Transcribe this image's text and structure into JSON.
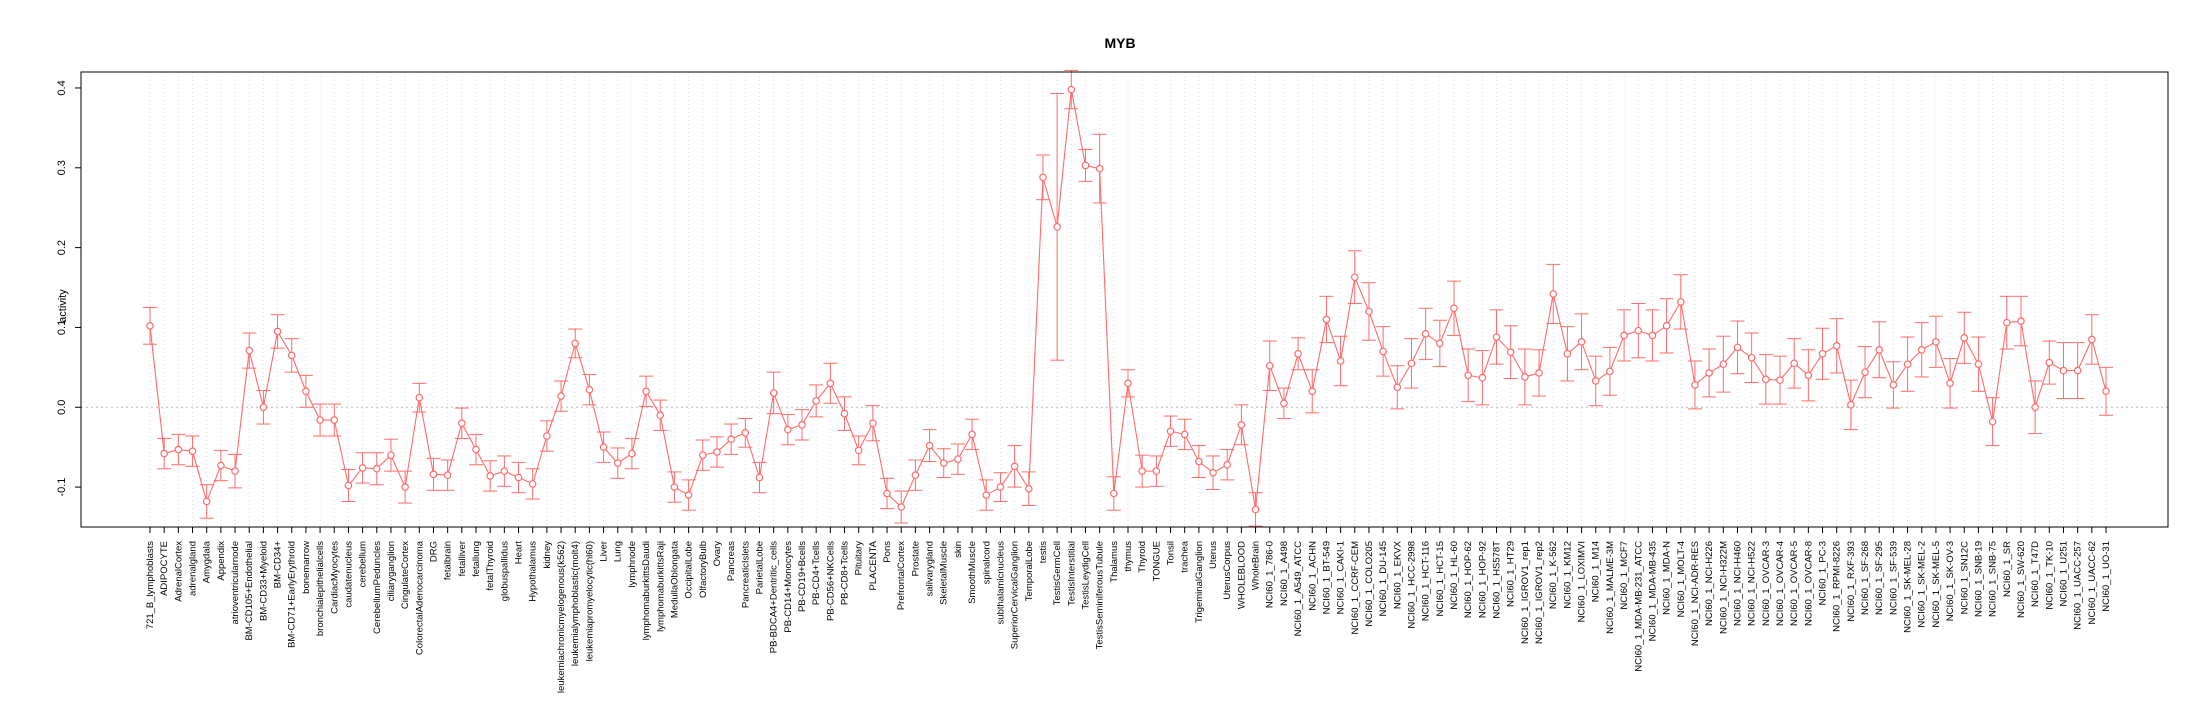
{
  "chart_data": {
    "type": "line",
    "title": "MYB",
    "xlabel": "",
    "ylabel": "activity",
    "ylim": [
      -0.15,
      0.42
    ],
    "yticks": [
      -0.1,
      0.0,
      0.1,
      0.2,
      0.3,
      0.4
    ],
    "ytick_labels": [
      "-0.1",
      "0.0",
      "0.1",
      "0.2",
      "0.3",
      "0.4"
    ],
    "reference_line": 0,
    "grid": "vertical dotted",
    "series_color": "#ff6b6b",
    "categories": [
      "721_B_lymphoblasts",
      "ADIPOCYTE",
      "AdrenalCortex",
      "adrenalgland",
      "Amygdala",
      "Appendix",
      "atrioventricularnode",
      "BM-CD105+Endothelial",
      "BM-CD33+Myeloid",
      "BM-CD34+",
      "BM-CD71+EarlyErythroid",
      "bonemarrow",
      "bronchialepithelialcells",
      "CardiacMyocytes",
      "caudatenucleus",
      "cerebellum",
      "CerebellumPeduncles",
      "ciliaryganglion",
      "CingulateCortex",
      "ColorectalAdenocarcinoma",
      "DRG",
      "fetalbrain",
      "fetalliver",
      "fetallung",
      "fetalThyroid",
      "globuspallidus",
      "Heart",
      "Hypothalamus",
      "kidney",
      "leukemiachronicmyelogenous(k562)",
      "leukemialymphoblastic(molt4)",
      "leukemiapromyelocytic(hl60)",
      "Liver",
      "Lung",
      "lymphnode",
      "lymphomaburkittsDaudi",
      "lymphomaburkittsRaji",
      "MedullaOblongata",
      "OccipitalLobe",
      "OlfactoryBulb",
      "Ovary",
      "Pancreas",
      "PancreaticIslets",
      "ParietalLobe",
      "PB-BDCA4+Dentritic_cells",
      "PB-CD14+Monocytes",
      "PB-CD19+Bcells",
      "PB-CD4+Tcells",
      "PB-CD56+NKCells",
      "PB-CD8+Tcells",
      "Pituitary",
      "PLACENTA",
      "Pons",
      "PrefrontalCortex",
      "Prostate",
      "salivarygland",
      "SkeletalMuscle",
      "skin",
      "SmoothMuscle",
      "spinalcord",
      "subthalamicnucleus",
      "SuperiorCervicalGanglion",
      "TemporalLobe",
      "testis",
      "TestisGermCell",
      "TestisInterstitial",
      "TestisLeydigCell",
      "TestisSeminiferousTubule",
      "Thalamus",
      "thymus",
      "Thyroid",
      "TONGUE",
      "Tonsil",
      "trachea",
      "TrigeminalGanglion",
      "Uterus",
      "UterusCorpus",
      "WHOLEBLOOD",
      "WholeBrain",
      "NCI60_1_786-0",
      "NCI60_1_A498",
      "NCI60_1_A549_ATCC",
      "NCI60_1_ACHN",
      "NCI60_1_BT-549",
      "NCI60_1_CAKI-1",
      "NCI60_1_CCRF-CEM",
      "NCI60_1_COLO205",
      "NCI60_1_DU-145",
      "NCI60_1_EKVX",
      "NCI60_1_HCC-2998",
      "NCI60_1_HCT-116",
      "NCI60_1_HCT-15",
      "NCI60_1_HL-60",
      "NCI60_1_HOP-62",
      "NCI60_1_HOP-92",
      "NCI60_1_HS578T",
      "NCI60_1_HT29",
      "NCI60_1_IGROV1_rep1",
      "NCI60_1_IGROV1_rep2",
      "NCI60_1_K-562",
      "NCI60_1_KM12",
      "NCI60_1_LOXIMVI",
      "NCI60_1_M14",
      "NCI60_1_MALME-3M",
      "NCI60_1_MCF7",
      "NCI60_1_MDA-MB-231_ATCC",
      "NCI60_1_MDA-MB-435",
      "NCI60_1_MDA-N",
      "NCI60_1_MOLT-4",
      "NCI60_1_NCI-ADR-RES",
      "NCI60_1_NCI-H226",
      "NCI60_1_NCI-H322M",
      "NCI60_1_NCI-H460",
      "NCI60_1_NCI-H522",
      "NCI60_1_OVCAR-3",
      "NCI60_1_OVCAR-4",
      "NCI60_1_OVCAR-5",
      "NCI60_1_OVCAR-8",
      "NCI60_1_PC-3",
      "NCI60_1_RPMI-8226",
      "NCI60_1_RXF-393",
      "NCI60_1_SF-268",
      "NCI60_1_SF-295",
      "NCI60_1_SF-539",
      "NCI60_1_SK-MEL-28",
      "NCI60_1_SK-MEL-2",
      "NCI60_1_SK-MEL-5",
      "NCI60_1_SK-OV-3",
      "NCI60_1_SN12C",
      "NCI60_1_SNB-19",
      "NCI60_1_SNB-75",
      "NCI60_1_SR",
      "NCI60_1_SW-620",
      "NCI60_1_T47D",
      "NCI60_1_TK-10",
      "NCI60_1_U251",
      "NCI60_1_UACC-257",
      "NCI60_1_UACC-62",
      "NCI60_1_UO-31"
    ],
    "values": [
      0.102,
      -0.058,
      -0.053,
      -0.055,
      -0.118,
      -0.073,
      -0.08,
      0.071,
      0.0,
      0.095,
      0.065,
      0.02,
      -0.016,
      -0.016,
      -0.098,
      -0.076,
      -0.077,
      -0.06,
      -0.1,
      0.012,
      -0.084,
      -0.085,
      -0.02,
      -0.053,
      -0.086,
      -0.08,
      -0.088,
      -0.096,
      -0.036,
      0.014,
      0.08,
      0.022,
      -0.05,
      -0.07,
      -0.058,
      0.02,
      -0.01,
      -0.1,
      -0.11,
      -0.06,
      -0.056,
      -0.04,
      -0.032,
      -0.088,
      0.018,
      -0.028,
      -0.022,
      0.008,
      0.03,
      -0.008,
      -0.054,
      -0.02,
      -0.108,
      -0.125,
      -0.085,
      -0.048,
      -0.07,
      -0.065,
      -0.034,
      -0.11,
      -0.1,
      -0.074,
      -0.102,
      0.288,
      0.226,
      0.398,
      0.303,
      0.299,
      -0.108,
      0.03,
      -0.08,
      -0.08,
      -0.03,
      -0.034,
      -0.068,
      -0.082,
      -0.072,
      -0.022,
      -0.128,
      0.052,
      0.005,
      0.067,
      0.02,
      0.11,
      0.058,
      0.163,
      0.12,
      0.07,
      0.025,
      0.055,
      0.092,
      0.08,
      0.124,
      0.04,
      0.037,
      0.088,
      0.069,
      0.038,
      0.043,
      0.142,
      0.067,
      0.082,
      0.033,
      0.045,
      0.09,
      0.096,
      0.09,
      0.102,
      0.132,
      0.028,
      0.043,
      0.054,
      0.075,
      0.062,
      0.035,
      0.034,
      0.055,
      0.04,
      0.067,
      0.077,
      0.003,
      0.044,
      0.072,
      0.028,
      0.054,
      0.072,
      0.082,
      0.03,
      0.087,
      0.054,
      -0.018,
      0.106,
      0.108,
      0.0,
      0.056,
      0.046,
      0.046,
      0.085,
      0.02
    ],
    "errors": [
      0.023,
      0.019,
      0.019,
      0.019,
      0.021,
      0.019,
      0.021,
      0.022,
      0.021,
      0.021,
      0.021,
      0.02,
      0.02,
      0.02,
      0.02,
      0.019,
      0.02,
      0.02,
      0.02,
      0.018,
      0.02,
      0.019,
      0.019,
      0.019,
      0.019,
      0.019,
      0.019,
      0.019,
      0.019,
      0.019,
      0.018,
      0.019,
      0.019,
      0.019,
      0.019,
      0.019,
      0.019,
      0.019,
      0.019,
      0.019,
      0.019,
      0.019,
      0.018,
      0.019,
      0.026,
      0.019,
      0.019,
      0.02,
      0.025,
      0.021,
      0.018,
      0.022,
      0.019,
      0.02,
      0.019,
      0.02,
      0.018,
      0.019,
      0.019,
      0.019,
      0.018,
      0.026,
      0.021,
      0.028,
      0.167,
      0.024,
      0.02,
      0.043,
      0.021,
      0.017,
      0.02,
      0.019,
      0.019,
      0.019,
      0.02,
      0.021,
      0.019,
      0.025,
      0.021,
      0.031,
      0.019,
      0.02,
      0.027,
      0.029,
      0.031,
      0.033,
      0.036,
      0.031,
      0.027,
      0.031,
      0.032,
      0.029,
      0.034,
      0.033,
      0.034,
      0.034,
      0.033,
      0.035,
      0.029,
      0.037,
      0.034,
      0.035,
      0.031,
      0.03,
      0.032,
      0.034,
      0.032,
      0.034,
      0.034,
      0.03,
      0.03,
      0.035,
      0.033,
      0.031,
      0.031,
      0.03,
      0.031,
      0.032,
      0.032,
      0.034,
      0.031,
      0.032,
      0.035,
      0.029,
      0.034,
      0.034,
      0.032,
      0.031,
      0.032,
      0.034,
      0.03,
      0.033,
      0.031,
      0.033,
      0.027,
      0.035,
      0.035,
      0.031,
      0.03
    ]
  }
}
